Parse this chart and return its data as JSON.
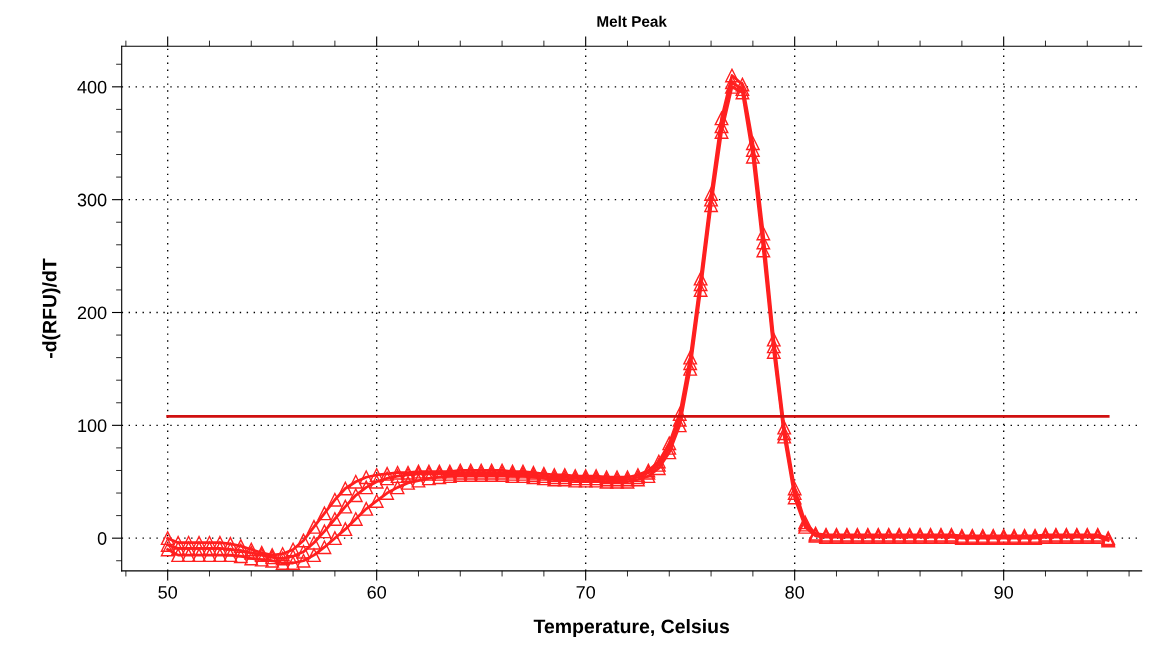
{
  "chart_data": {
    "type": "line",
    "title": "Melt Peak",
    "xlabel": "Temperature, Celsius",
    "ylabel": "-d(RFU)/dT",
    "xlim": [
      47.8,
      96.6
    ],
    "xticks": [
      50,
      60,
      70,
      80,
      90
    ],
    "ylim": [
      -29,
      436
    ],
    "yticks": [
      0,
      100,
      200,
      300,
      400
    ],
    "grid": true,
    "marker": "triangle",
    "line_style": "solid",
    "x": [
      50,
      50.5,
      51,
      51.5,
      52,
      52.5,
      53,
      53.5,
      54,
      54.5,
      55,
      55.5,
      56,
      56.5,
      57,
      57.5,
      58,
      58.5,
      59,
      59.5,
      60,
      60.5,
      61,
      61.5,
      62,
      62.5,
      63,
      63.5,
      64,
      64.5,
      65,
      65.5,
      66,
      66.5,
      67,
      67.5,
      68,
      68.5,
      69,
      69.5,
      70,
      70.5,
      71,
      71.5,
      72,
      72.5,
      73,
      73.5,
      74,
      74.5,
      75,
      75.5,
      76,
      76.5,
      77,
      77.5,
      78,
      78.5,
      79,
      79.5,
      80,
      80.5,
      81,
      81.5,
      82,
      82.5,
      83,
      83.5,
      84,
      84.5,
      85,
      85.5,
      86,
      86.5,
      87,
      87.5,
      88,
      88.5,
      89,
      89.5,
      90,
      90.5,
      91,
      91.5,
      92,
      92.5,
      93,
      93.5,
      94,
      94.5,
      95
    ],
    "series": [
      {
        "color": "#ff2020",
        "values": [
          0,
          -4,
          -4,
          -4,
          -4,
          -4,
          -5,
          -7,
          -10,
          -13,
          -15,
          -14,
          -10,
          -2,
          10,
          22,
          34,
          44,
          50,
          54,
          56,
          57,
          58,
          58,
          59,
          59,
          59,
          59,
          60,
          60,
          60,
          60,
          60,
          59,
          59,
          58,
          57,
          56,
          56,
          55,
          55,
          55,
          54,
          54,
          54,
          56,
          60,
          68,
          84,
          110,
          160,
          230,
          305,
          372,
          410,
          402,
          350,
          270,
          176,
          98,
          44,
          14,
          4,
          3,
          3,
          3,
          3,
          3,
          3,
          3,
          3,
          3,
          3,
          3,
          3,
          3,
          2,
          2,
          2,
          2,
          2,
          2,
          2,
          2,
          3,
          3,
          3,
          3,
          3,
          3,
          0
        ]
      },
      {
        "color": "#ff2020",
        "values": [
          -6,
          -9,
          -9,
          -9,
          -9,
          -9,
          -10,
          -11,
          -13,
          -15,
          -17,
          -18,
          -16,
          -12,
          -4,
          6,
          17,
          28,
          38,
          45,
          50,
          53,
          55,
          56,
          57,
          57,
          57,
          57,
          58,
          58,
          58,
          58,
          58,
          57,
          57,
          56,
          55,
          54,
          54,
          53,
          53,
          53,
          52,
          52,
          52,
          54,
          58,
          65,
          80,
          105,
          155,
          225,
          300,
          365,
          404,
          398,
          344,
          262,
          170,
          93,
          40,
          12,
          3,
          2,
          2,
          2,
          2,
          2,
          2,
          2,
          2,
          2,
          2,
          2,
          2,
          2,
          1,
          1,
          1,
          1,
          1,
          1,
          1,
          1,
          2,
          2,
          2,
          2,
          2,
          2,
          -1
        ]
      },
      {
        "color": "#ff2020",
        "values": [
          -10,
          -15,
          -15,
          -15,
          -15,
          -15,
          -15,
          -16,
          -18,
          -19,
          -20,
          -22,
          -22,
          -20,
          -15,
          -8,
          0,
          8,
          17,
          26,
          33,
          40,
          45,
          49,
          51,
          53,
          54,
          55,
          56,
          56,
          56,
          56,
          56,
          55,
          55,
          54,
          53,
          52,
          52,
          51,
          51,
          51,
          50,
          50,
          50,
          52,
          55,
          62,
          76,
          100,
          150,
          220,
          295,
          360,
          400,
          395,
          338,
          255,
          165,
          90,
          36,
          10,
          2,
          1,
          1,
          1,
          1,
          1,
          1,
          1,
          1,
          1,
          1,
          1,
          1,
          1,
          0,
          0,
          0,
          0,
          0,
          0,
          0,
          0,
          1,
          1,
          1,
          1,
          1,
          1,
          -2
        ]
      },
      {
        "color": "#d01010",
        "x": [
          50,
          95
        ],
        "values": [
          108,
          108
        ],
        "marker": "none"
      }
    ]
  }
}
